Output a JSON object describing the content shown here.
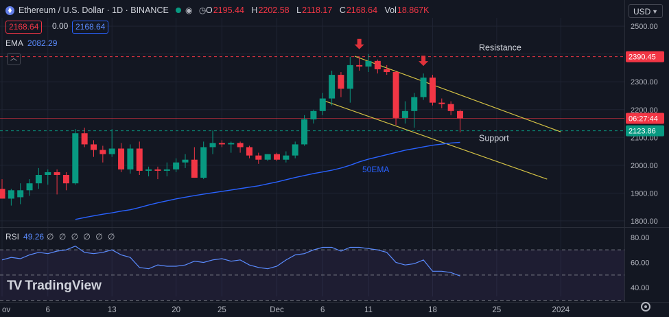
{
  "header": {
    "title": "Ethereum / U.S. Dollar · 1D · BINANCE",
    "ohlc": {
      "o_key": "O",
      "o_val": "2195.44",
      "h_key": "H",
      "h_val": "2202.58",
      "l_key": "L",
      "l_val": "2118.17",
      "c_key": "C",
      "c_val": "2168.64",
      "vol_key": "Vol",
      "vol_val": "18.867K"
    },
    "sell_price": "2168.64",
    "spread": "0.00",
    "buy_price": "2168.64",
    "currency": "USD",
    "icons": [
      "eye-icon",
      "clock-icon"
    ]
  },
  "ema": {
    "label": "EMA",
    "value": "2082.29"
  },
  "rsi": {
    "label": "RSI",
    "value": "49.26",
    "extra": "∅ ∅ ∅ ∅ ∅ ∅"
  },
  "brand": "TradingView",
  "chart_data": {
    "type": "candlestick",
    "candle_fields": [
      "open",
      "high",
      "low",
      "close"
    ],
    "candles": [
      [
        1915,
        1950,
        1880,
        1880
      ],
      [
        1880,
        1915,
        1855,
        1910
      ],
      [
        1885,
        1935,
        1860,
        1910
      ],
      [
        1910,
        1950,
        1890,
        1935
      ],
      [
        1935,
        1990,
        1915,
        1965
      ],
      [
        1965,
        1985,
        1930,
        1975
      ],
      [
        1975,
        1985,
        1895,
        1965
      ],
      [
        1965,
        1975,
        1910,
        1935
      ],
      [
        1935,
        2130,
        1930,
        2115
      ],
      [
        2115,
        2135,
        2065,
        2075
      ],
      [
        2075,
        2090,
        2030,
        2055
      ],
      [
        2055,
        2070,
        2010,
        2040
      ],
      [
        2040,
        2130,
        2030,
        2060
      ],
      [
        2060,
        2080,
        1975,
        1985
      ],
      [
        1985,
        2075,
        1970,
        2060
      ],
      [
        2060,
        2085,
        1965,
        1980
      ],
      [
        1980,
        1995,
        1960,
        1985
      ],
      [
        1985,
        1995,
        1950,
        1980
      ],
      [
        1980,
        2010,
        1960,
        1985
      ],
      [
        1985,
        2025,
        1975,
        2010
      ],
      [
        2010,
        2040,
        1990,
        2020
      ],
      [
        2020,
        2065,
        1955,
        1955
      ],
      [
        1955,
        2085,
        1950,
        2065
      ],
      [
        2065,
        2125,
        2040,
        2080
      ],
      [
        2080,
        2090,
        2065,
        2075
      ],
      [
        2075,
        2085,
        2045,
        2080
      ],
      [
        2080,
        2085,
        2045,
        2065
      ],
      [
        2065,
        2070,
        2025,
        2035
      ],
      [
        2035,
        2045,
        2005,
        2020
      ],
      [
        2020,
        2040,
        2015,
        2040
      ],
      [
        2040,
        2045,
        2015,
        2020
      ],
      [
        2020,
        2050,
        2010,
        2035
      ],
      [
        2035,
        2085,
        2025,
        2075
      ],
      [
        2075,
        2180,
        2070,
        2165
      ],
      [
        2165,
        2200,
        2150,
        2195
      ],
      [
        2195,
        2260,
        2180,
        2240
      ],
      [
        2240,
        2340,
        2215,
        2325
      ],
      [
        2325,
        2335,
        2245,
        2275
      ],
      [
        2275,
        2390,
        2225,
        2360
      ],
      [
        2360,
        2390,
        2340,
        2355
      ],
      [
        2355,
        2400,
        2335,
        2375
      ],
      [
        2375,
        2380,
        2330,
        2345
      ],
      [
        2345,
        2360,
        2325,
        2335
      ],
      [
        2335,
        2340,
        2145,
        2170
      ],
      [
        2170,
        2230,
        2150,
        2195
      ],
      [
        2195,
        2260,
        2135,
        2245
      ],
      [
        2245,
        2330,
        2235,
        2315
      ],
      [
        2315,
        2325,
        2215,
        2225
      ],
      [
        2225,
        2240,
        2205,
        2220
      ],
      [
        2220,
        2230,
        2180,
        2195
      ],
      [
        2195,
        2200,
        2118,
        2168.64
      ]
    ],
    "ema_label": "50EMA",
    "ema_values": [
      1805,
      1812,
      1818,
      1824,
      1829,
      1835,
      1840,
      1848,
      1857,
      1865,
      1872,
      1879,
      1885,
      1891,
      1896,
      1901,
      1906,
      1911,
      1916,
      1921,
      1926,
      1933,
      1940,
      1948,
      1956,
      1963,
      1970,
      1976,
      1982,
      1990,
      2000,
      2012,
      2022,
      2030,
      2038,
      2046,
      2054,
      2060,
      2066,
      2072,
      2076,
      2080,
      2082.29
    ],
    "ema_start_index": 8,
    "price_axis": {
      "min": 1780,
      "max": 2530,
      "ticks": [
        "2500.00",
        "2400.00",
        "2300.00",
        "2200.00",
        "2100.00",
        "2000.00",
        "1900.00",
        "1800.00"
      ]
    },
    "x_labels": [
      "ov",
      "6",
      "13",
      "20",
      "25",
      "Dec",
      "6",
      "11",
      "18",
      "25",
      "2024"
    ],
    "x_label_positions": [
      0,
      5,
      12,
      19,
      24,
      30,
      35,
      40,
      47,
      54,
      61
    ],
    "resistance": {
      "label": "Resistance",
      "value": 2390.45,
      "tag": "2390.45"
    },
    "support": {
      "label": "Support",
      "value": 2123.86,
      "tag": "2123.86"
    },
    "current": {
      "value": 2168.64,
      "countdown": "06:27:44"
    },
    "channel_upper": {
      "from": [
        38.5,
        2392
      ],
      "to": [
        61,
        2120
      ]
    },
    "channel_lower": {
      "from": [
        34.8,
        2236
      ],
      "to": [
        59.5,
        1950
      ]
    },
    "arrows": [
      39,
      46
    ],
    "rsi_values": [
      62,
      64,
      63,
      66,
      68,
      67,
      69,
      70,
      73,
      68,
      67,
      68,
      70,
      66,
      64,
      56,
      55,
      58,
      57,
      57,
      58,
      61,
      60,
      62,
      63,
      61,
      62,
      58,
      56,
      55,
      57,
      62,
      66,
      67,
      70,
      72,
      72,
      69,
      72,
      72,
      71,
      70,
      68,
      60,
      58,
      59,
      62,
      53,
      53,
      52,
      49.26
    ],
    "rsi_axis": {
      "min": 33,
      "max": 87,
      "ticks": [
        "80.00",
        "60.00",
        "40.00"
      ]
    },
    "rsi_bands": {
      "upper": 70,
      "mid": 50,
      "lower": 30
    },
    "colors": {
      "up": "#089981",
      "down": "#f23645",
      "ema": "#2962ff",
      "resistance": "#f23645",
      "support": "#089981",
      "channel": "#d4c245",
      "rsi": "#5b8cff",
      "background": "#131722",
      "grid": "#1f2433"
    }
  }
}
